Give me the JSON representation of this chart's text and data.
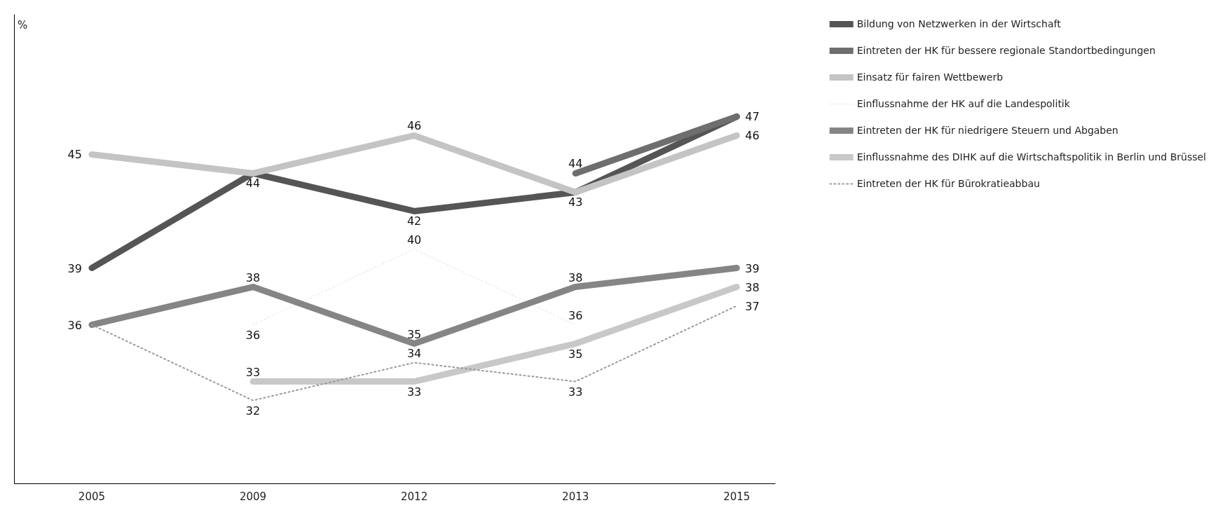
{
  "chart_data": {
    "type": "line",
    "ylabel": "%",
    "categories": [
      "2005",
      "2009",
      "2012",
      "2013",
      "2015"
    ],
    "ylim": [
      27.6,
      52.4
    ],
    "tick_labels": "x",
    "grid": false,
    "legend": "right",
    "line_style": "solid",
    "marker": "none",
    "series": [
      {
        "name": "Bildung von Netzwerken in der Wirtschaft",
        "color": "#555555",
        "values": [
          39,
          44,
          42,
          43,
          47
        ],
        "value_labels": [
          "39",
          null,
          "42",
          "43",
          "47"
        ]
      },
      {
        "name": "Eintreten der HK für bessere regionale Standortbedingungen",
        "color": "#6e6e6e",
        "values": [
          null,
          null,
          null,
          44,
          47
        ],
        "value_labels": [
          null,
          null,
          null,
          "44",
          null
        ]
      },
      {
        "name": "Einsatz für fairen Wettbewerb",
        "color": "#c4c4c4",
        "values": [
          45,
          44,
          46,
          43,
          46
        ],
        "value_labels": [
          "45",
          "44",
          "46",
          null,
          "46"
        ]
      },
      {
        "name": "Einflussnahme der HK auf die Landespolitik",
        "color": "#f2f2f2",
        "line_style": "dotted",
        "values": [
          null,
          36,
          40,
          36,
          null
        ],
        "value_labels": [
          null,
          "36",
          "40",
          "36",
          null
        ]
      },
      {
        "name": "Eintreten der HK für niedrigere Steuern und Abgaben",
        "color": "#858585",
        "values": [
          36,
          38,
          35,
          38,
          39
        ],
        "value_labels": [
          "36",
          "38",
          "35",
          "38",
          "39"
        ]
      },
      {
        "name": "Einflussnahme des DIHK auf die Wirtschaftspolitik in Berlin und Brüssel",
        "color": "#c8c8c8",
        "values": [
          null,
          33,
          33,
          35,
          38
        ],
        "value_labels": [
          null,
          "33",
          "33",
          "35",
          "38"
        ]
      },
      {
        "name": "Eintreten der HK für Bürokratieabbau",
        "color": "#9a9a9a",
        "line_style": "dotted",
        "values": [
          36,
          32,
          34,
          33,
          37
        ],
        "value_labels": [
          null,
          "32",
          "34",
          "33",
          "37"
        ]
      }
    ]
  }
}
